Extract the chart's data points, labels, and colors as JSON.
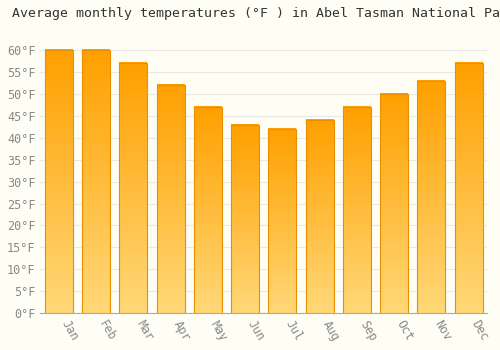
{
  "title": "Average monthly temperatures (°F ) in Abel Tasman National Park",
  "months": [
    "Jan",
    "Feb",
    "Mar",
    "Apr",
    "May",
    "Jun",
    "Jul",
    "Aug",
    "Sep",
    "Oct",
    "Nov",
    "Dec"
  ],
  "values": [
    60,
    60,
    57,
    52,
    47,
    43,
    42,
    44,
    47,
    50,
    53,
    57
  ],
  "color_top": "#FFA000",
  "color_bottom": "#FFD878",
  "bar_edge_color": "#E89000",
  "ylim": [
    0,
    65
  ],
  "yticks": [
    0,
    5,
    10,
    15,
    20,
    25,
    30,
    35,
    40,
    45,
    50,
    55,
    60
  ],
  "ytick_labels": [
    "0°F",
    "5°F",
    "10°F",
    "15°F",
    "20°F",
    "25°F",
    "30°F",
    "35°F",
    "40°F",
    "45°F",
    "50°F",
    "55°F",
    "60°F"
  ],
  "background_color": "#fffef5",
  "grid_color": "#e8e8e8",
  "title_fontsize": 9.5,
  "tick_fontsize": 8.5,
  "bar_width": 0.75
}
